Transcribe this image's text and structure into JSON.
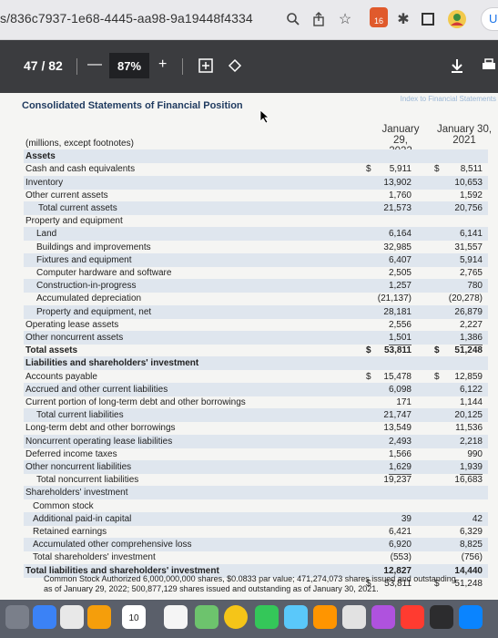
{
  "browser": {
    "url": "s/836c7937-1e68-4445-aa98-9a19448f4334",
    "extension_badge": "16",
    "update_label": "Up"
  },
  "pdf_toolbar": {
    "page_indicator": "47 / 82",
    "zoom": "87%",
    "minus": "—",
    "plus": "+"
  },
  "document": {
    "index_link": "Index to Financial Statements",
    "title": "Consolidated Statements of Financial Position",
    "col1_header_line1": "January 29,",
    "col1_header_line2": "2022",
    "col2_header_line1": "January 30,",
    "col2_header_line2": "2021",
    "rows": [
      {
        "label": "(millions, except footnotes)",
        "d1": "",
        "v1": "",
        "d2": "",
        "v2": ""
      },
      {
        "label": "Assets",
        "d1": "",
        "v1": "",
        "d2": "",
        "v2": ""
      },
      {
        "label": "Cash and cash equivalents",
        "d1": "$",
        "v1": "5,911",
        "d2": "$",
        "v2": "8,511"
      },
      {
        "label": "Inventory",
        "d1": "",
        "v1": "13,902",
        "d2": "",
        "v2": "10,653"
      },
      {
        "label": "Other current assets",
        "d1": "",
        "v1": "1,760",
        "d2": "",
        "v2": "1,592"
      },
      {
        "label": "Total current assets",
        "d1": "",
        "v1": "21,573",
        "d2": "",
        "v2": "20,756"
      },
      {
        "label": "Property and equipment",
        "d1": "",
        "v1": "",
        "d2": "",
        "v2": ""
      },
      {
        "label": "Land",
        "d1": "",
        "v1": "6,164",
        "d2": "",
        "v2": "6,141"
      },
      {
        "label": "Buildings and improvements",
        "d1": "",
        "v1": "32,985",
        "d2": "",
        "v2": "31,557"
      },
      {
        "label": "Fixtures and equipment",
        "d1": "",
        "v1": "6,407",
        "d2": "",
        "v2": "5,914"
      },
      {
        "label": "Computer hardware and software",
        "d1": "",
        "v1": "2,505",
        "d2": "",
        "v2": "2,765"
      },
      {
        "label": "Construction-in-progress",
        "d1": "",
        "v1": "1,257",
        "d2": "",
        "v2": "780"
      },
      {
        "label": "Accumulated depreciation",
        "d1": "",
        "v1": "(21,137)",
        "d2": "",
        "v2": "(20,278)"
      },
      {
        "label": "Property and equipment, net",
        "d1": "",
        "v1": "28,181",
        "d2": "",
        "v2": "26,879"
      },
      {
        "label": "Operating lease assets",
        "d1": "",
        "v1": "2,556",
        "d2": "",
        "v2": "2,227"
      },
      {
        "label": "Other noncurrent assets",
        "d1": "",
        "v1": "1,501",
        "d2": "",
        "v2": "1,386"
      },
      {
        "label": "Total assets",
        "d1": "$",
        "v1": "53,811",
        "d2": "$",
        "v2": "51,248"
      },
      {
        "label": "Liabilities and shareholders' investment",
        "d1": "",
        "v1": "",
        "d2": "",
        "v2": ""
      },
      {
        "label": "Accounts payable",
        "d1": "$",
        "v1": "15,478",
        "d2": "$",
        "v2": "12,859"
      },
      {
        "label": "Accrued and other current liabilities",
        "d1": "",
        "v1": "6,098",
        "d2": "",
        "v2": "6,122"
      },
      {
        "label": "Current portion of long-term debt and other borrowings",
        "d1": "",
        "v1": "171",
        "d2": "",
        "v2": "1,144"
      },
      {
        "label": "Total current liabilities",
        "d1": "",
        "v1": "21,747",
        "d2": "",
        "v2": "20,125"
      },
      {
        "label": "Long-term debt and other borrowings",
        "d1": "",
        "v1": "13,549",
        "d2": "",
        "v2": "11,536"
      },
      {
        "label": "Noncurrent operating lease liabilities",
        "d1": "",
        "v1": "2,493",
        "d2": "",
        "v2": "2,218"
      },
      {
        "label": "Deferred income taxes",
        "d1": "",
        "v1": "1,566",
        "d2": "",
        "v2": "990"
      },
      {
        "label": "Other noncurrent liabilities",
        "d1": "",
        "v1": "1,629",
        "d2": "",
        "v2": "1,939"
      },
      {
        "label": "Total noncurrent liabilities",
        "d1": "",
        "v1": "19,237",
        "d2": "",
        "v2": "16,683"
      },
      {
        "label": "Shareholders' investment",
        "d1": "",
        "v1": "",
        "d2": "",
        "v2": ""
      },
      {
        "label": "Common stock",
        "d1": "",
        "v1": "",
        "d2": "",
        "v2": ""
      },
      {
        "label": "Additional paid-in capital",
        "d1": "",
        "v1": "39",
        "d2": "",
        "v2": "42"
      },
      {
        "label": "Retained earnings",
        "d1": "",
        "v1": "6,421",
        "d2": "",
        "v2": "6,329"
      },
      {
        "label": "Accumulated other comprehensive loss",
        "d1": "",
        "v1": "6,920",
        "d2": "",
        "v2": "8,825"
      },
      {
        "label": "Total shareholders' investment",
        "d1": "",
        "v1": "(553)",
        "d2": "",
        "v2": "(756)"
      },
      {
        "label": "Total liabilities and shareholders' investment",
        "d1": "",
        "v1": "12,827",
        "d2": "",
        "v2": "14,440"
      },
      {
        "label": "",
        "d1": "$",
        "v1": "53,811",
        "d2": "$",
        "v2": "51,248"
      }
    ],
    "footnote_line1": "Common Stock Authorized 6,000,000,000 shares, $0.0833 par value; 471,274,073 shares issued and outstanding",
    "footnote_line2": "as of January 29, 2022; 500,877,129 shares issued and outstanding as of January 30, 2021."
  },
  "dock": {
    "calendar_day": "10"
  },
  "colors": {
    "pdf_toolbar": "#3b3c3f",
    "title_blue": "#1f3a5f",
    "row_shade": "#dfe6ee"
  }
}
